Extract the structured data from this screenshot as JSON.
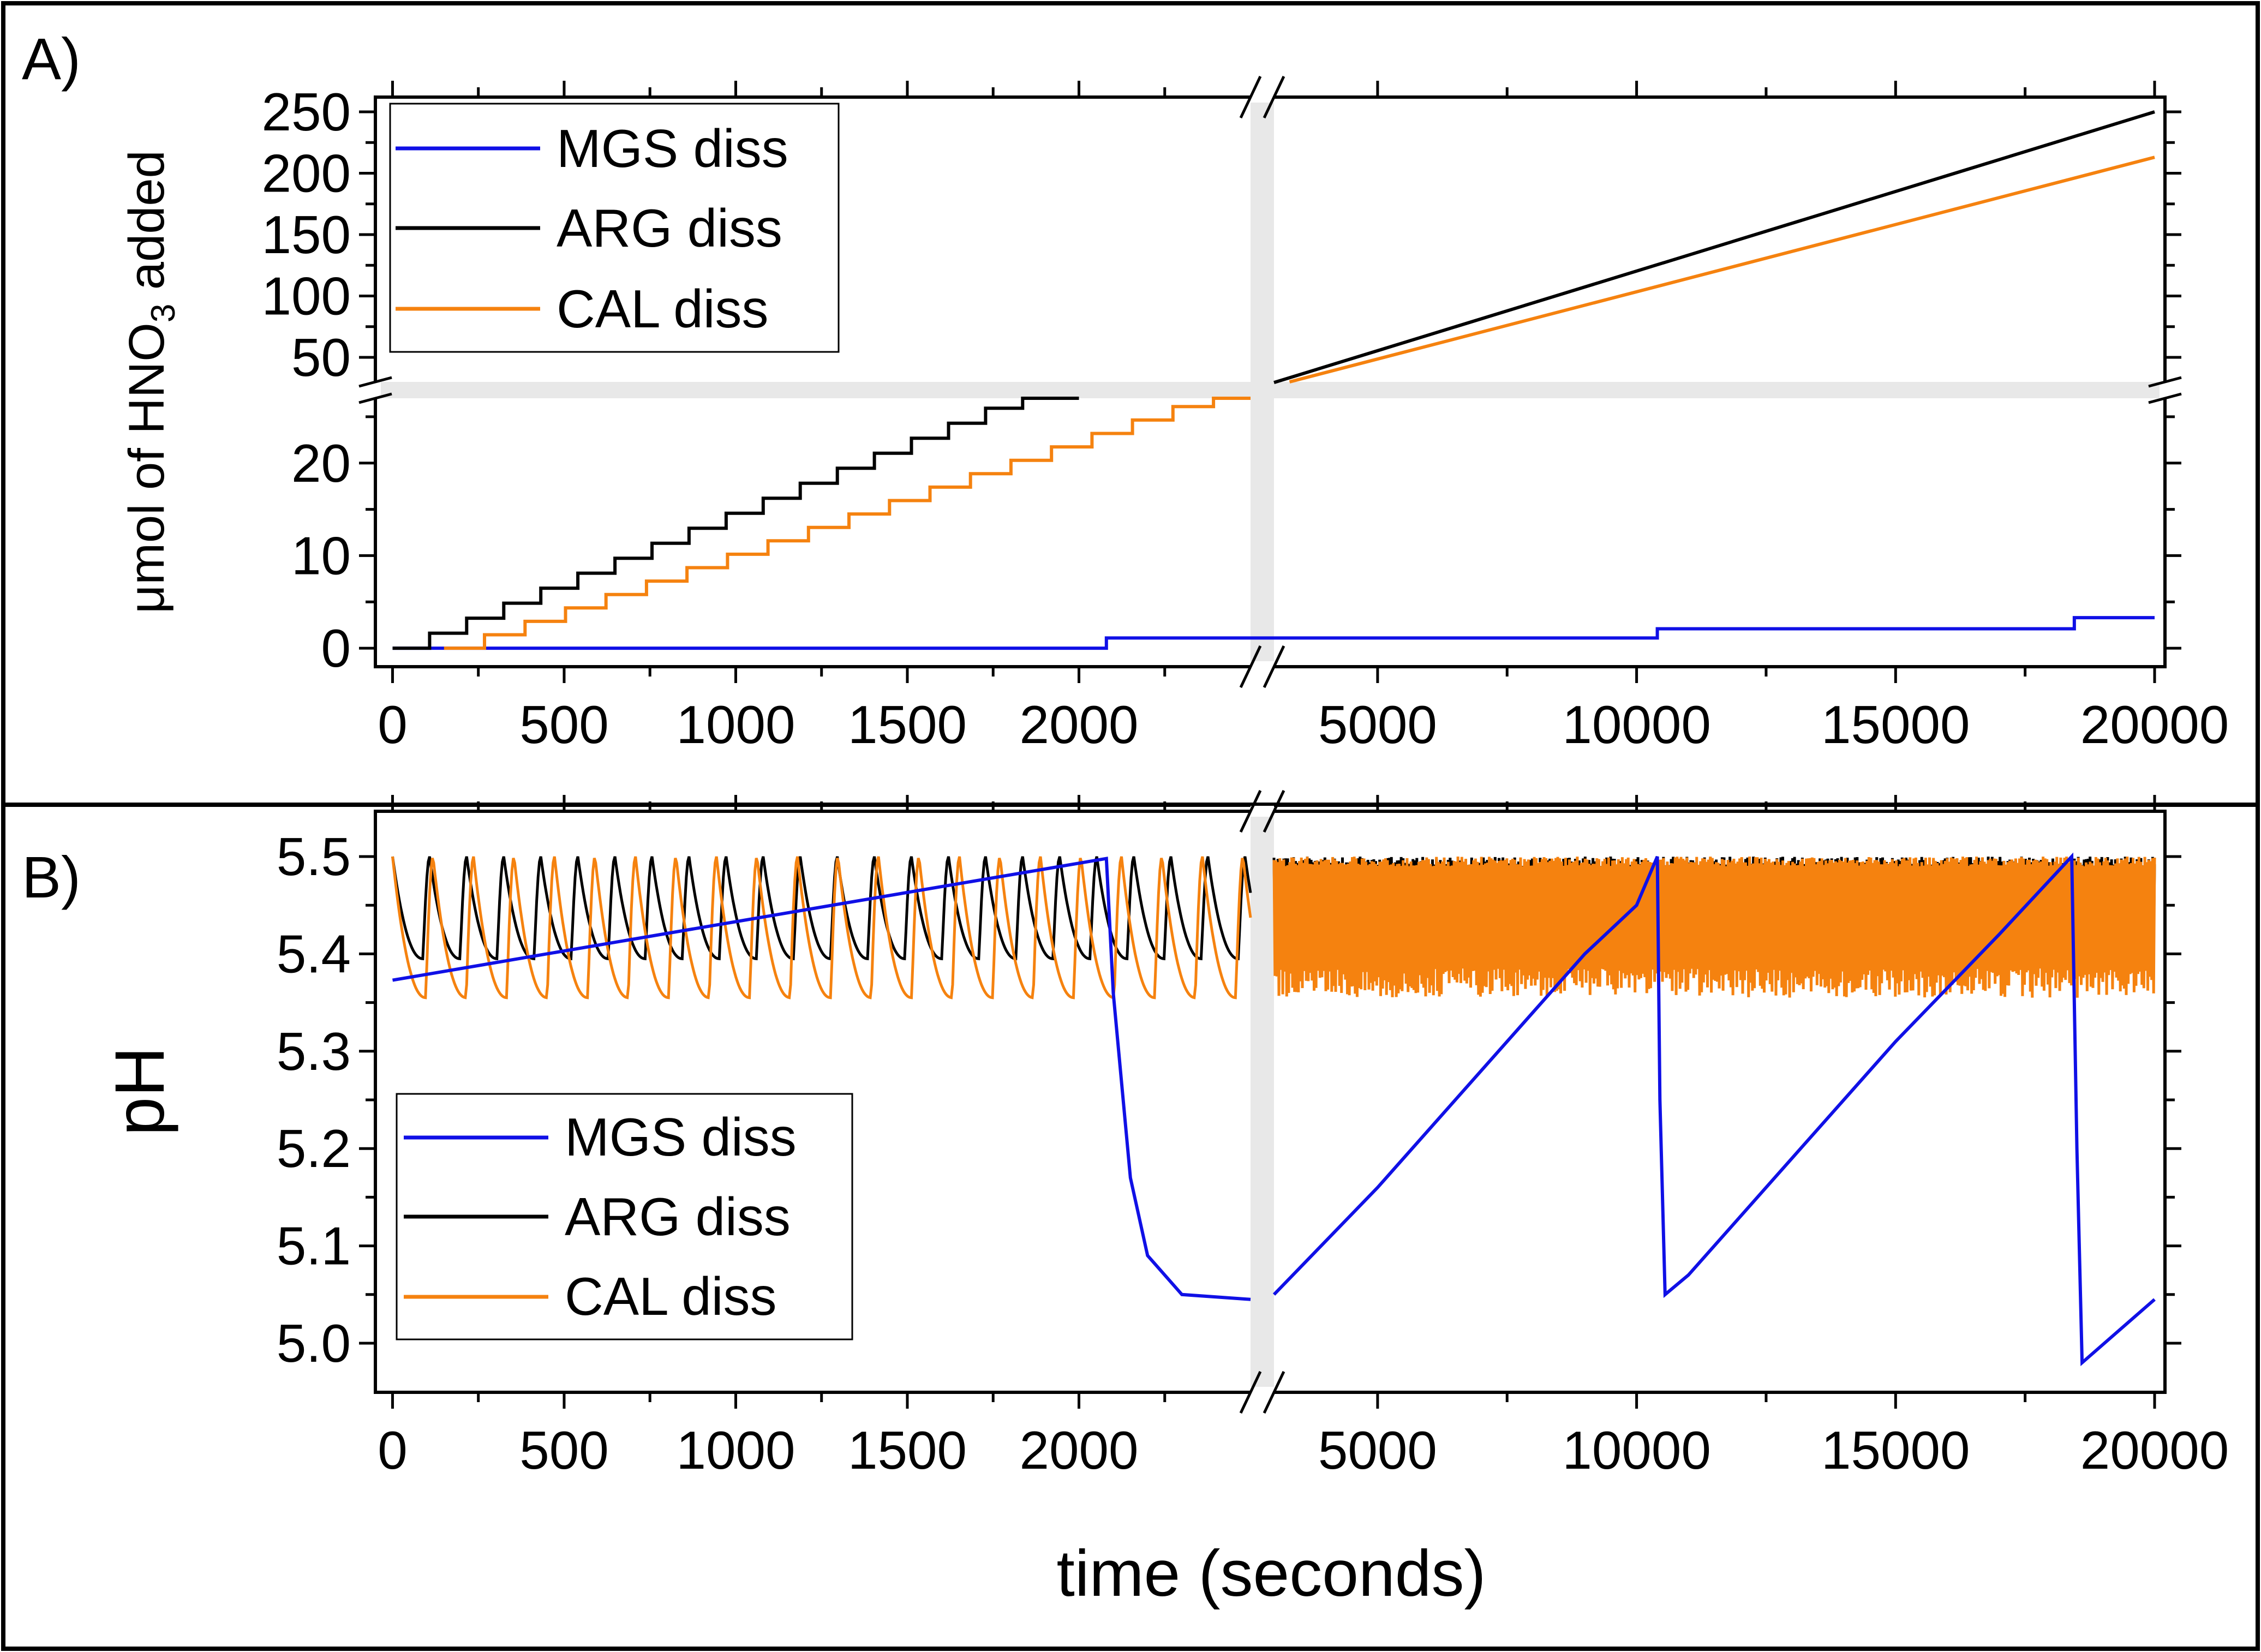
{
  "chart_data": [
    {
      "panel_label": "A)",
      "type": "line",
      "ylabel_prefix": "μmol of HNO",
      "ylabel_sub": "3",
      "ylabel_suffix": " added",
      "x_break": [
        2500,
        3000
      ],
      "xlim": [
        -50,
        20200
      ],
      "y_break": [
        27,
        30
      ],
      "ylim": [
        -2,
        262
      ],
      "xticks_left": [
        0,
        500,
        1000,
        1500,
        2000
      ],
      "xticks_right": [
        5000,
        10000,
        15000,
        20000
      ],
      "yticks_lower": [
        0,
        10,
        20
      ],
      "yticks_upper": [
        50,
        100,
        150,
        200,
        250
      ],
      "legend": {
        "position": "top-left",
        "entries": [
          "MGS diss",
          "ARG diss",
          "CAL diss"
        ]
      },
      "series": [
        {
          "name": "MGS diss",
          "color": "#1010e6",
          "shape": "steps",
          "steps": [
            [
              0,
              0
            ],
            [
              2080,
              1.1
            ],
            [
              10400,
              2.1
            ],
            [
              18450,
              3.3
            ],
            [
              20000,
              3.3
            ]
          ]
        },
        {
          "name": "ARG diss",
          "color": "#000000",
          "shape": "steps",
          "step_x0": 0,
          "step_x1": 2000,
          "step_dt": 108,
          "step_dy": 1.62,
          "continuation": [
            [
              3000,
              29.5
            ],
            [
              20000,
              250
            ]
          ]
        },
        {
          "name": "CAL diss",
          "color": "#f5820f",
          "shape": "steps",
          "step_x0": 150,
          "step_x1": 2500,
          "step_dt": 118,
          "step_dy": 1.45,
          "continuation": [
            [
              3300,
              30
            ],
            [
              20000,
              213
            ]
          ]
        }
      ]
    },
    {
      "panel_label": "B)",
      "type": "line",
      "ylabel": "pH",
      "xlabel": "time (seconds)",
      "x_break": [
        2500,
        3000
      ],
      "xlim": [
        -50,
        20200
      ],
      "ylim": [
        4.95,
        5.55
      ],
      "xticks_left": [
        0,
        500,
        1000,
        1500,
        2000
      ],
      "xticks_right": [
        5000,
        10000,
        15000,
        20000
      ],
      "yticks": [
        5.0,
        5.1,
        5.2,
        5.3,
        5.4,
        5.5
      ],
      "legend": {
        "position": "bottom-left",
        "entries": [
          "MGS diss",
          "ARG diss",
          "CAL diss"
        ]
      },
      "series": [
        {
          "name": "MGS diss",
          "color": "#1010e6",
          "points": [
            [
              0,
              5.373
            ],
            [
              2080,
              5.498
            ],
            [
              2100,
              5.36
            ],
            [
              2150,
              5.17
            ],
            [
              2200,
              5.09
            ],
            [
              2300,
              5.05
            ],
            [
              2500,
              5.045
            ],
            [
              3000,
              5.05
            ],
            [
              5000,
              5.16
            ],
            [
              7000,
              5.28
            ],
            [
              9000,
              5.4
            ],
            [
              10000,
              5.45
            ],
            [
              10400,
              5.5
            ],
            [
              10450,
              5.25
            ],
            [
              10550,
              5.05
            ],
            [
              11000,
              5.07
            ],
            [
              13000,
              5.19
            ],
            [
              15000,
              5.31
            ],
            [
              17000,
              5.42
            ],
            [
              18400,
              5.5
            ],
            [
              18500,
              5.2
            ],
            [
              18600,
              4.98
            ],
            [
              20000,
              5.045
            ]
          ]
        },
        {
          "name": "ARG diss",
          "color": "#000000",
          "oscillation": {
            "min": 5.395,
            "max": 5.5,
            "period_s": 108
          }
        },
        {
          "name": "CAL diss",
          "color": "#f5820f",
          "oscillation": {
            "min": 5.355,
            "max": 5.5,
            "period_s": 118
          }
        }
      ]
    }
  ]
}
